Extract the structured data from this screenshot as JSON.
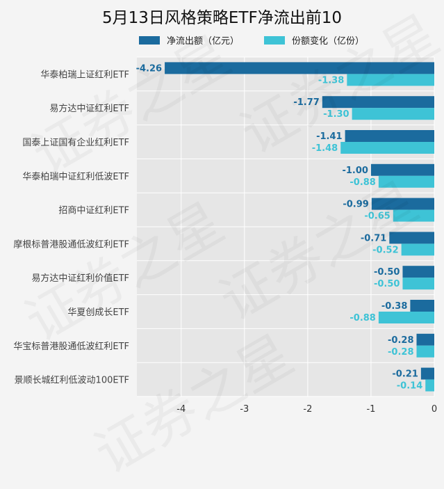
{
  "chart_data": {
    "type": "bar",
    "orientation": "horizontal",
    "title": "5月13日风格策略ETF净流出前10",
    "categories": [
      "华泰柏瑞上证红利ETF",
      "易方达中证红利ETF",
      "国泰上证国有企业红利ETF",
      "华泰柏瑞中证红利低波ETF",
      "招商中证红利ETF",
      "摩根标普港股通低波红利ETF",
      "易方达中证红利价值ETF",
      "华夏创成长ETF",
      "华宝标普港股通低波红利ETF",
      "景顺长城红利低波动100ETF"
    ],
    "series": [
      {
        "name": "净流出额（亿元）",
        "color": "#1b6b9e",
        "values": [
          -4.26,
          -1.77,
          -1.41,
          -1.0,
          -0.99,
          -0.71,
          -0.5,
          -0.38,
          -0.28,
          -0.21
        ],
        "labels": [
          "-4.26",
          "-1.77",
          "-1.41",
          "-1.00",
          "-0.99",
          "-0.71",
          "-0.50",
          "-0.38",
          "-0.28",
          "-0.21"
        ]
      },
      {
        "name": "份额变化（亿份）",
        "color": "#3ec3d6",
        "values": [
          -1.38,
          -1.3,
          -1.48,
          -0.88,
          -0.65,
          -0.52,
          -0.5,
          -0.88,
          -0.28,
          -0.14
        ],
        "labels": [
          "-1.38",
          "-1.30",
          "-1.48",
          "-0.88",
          "-0.65",
          "-0.52",
          "-0.50",
          "-0.88",
          "-0.28",
          "-0.14"
        ]
      }
    ],
    "xticks": [
      -4,
      -3,
      -2,
      -1,
      0
    ],
    "xlim": [
      -4.7,
      0
    ],
    "grid": true,
    "legend_position": "top"
  },
  "watermark_text": "证券之星"
}
